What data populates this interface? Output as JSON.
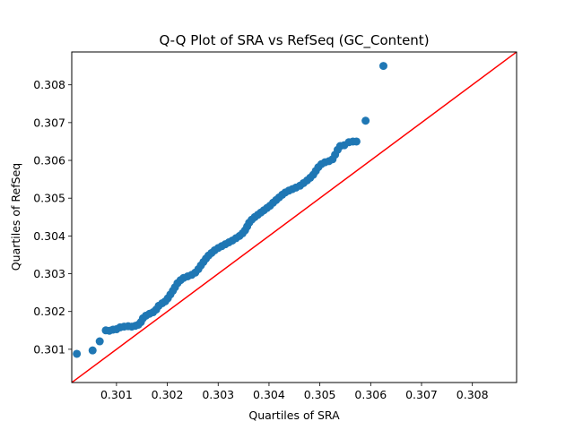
{
  "chart_data": {
    "type": "scatter",
    "title": "Q-Q Plot of SRA vs RefSeq (GC_Content)",
    "xlabel": "Quartiles of SRA",
    "ylabel": "Quartiles of RefSeq",
    "xlim": [
      0.30012,
      0.30887
    ],
    "ylim": [
      0.30012,
      0.30887
    ],
    "xticks": [
      0.301,
      0.302,
      0.303,
      0.304,
      0.305,
      0.306,
      0.307,
      0.308
    ],
    "yticks": [
      0.301,
      0.302,
      0.303,
      0.304,
      0.305,
      0.306,
      0.307,
      0.308
    ],
    "xtick_labels": [
      "0.301",
      "0.302",
      "0.303",
      "0.304",
      "0.305",
      "0.306",
      "0.307",
      "0.308"
    ],
    "ytick_labels": [
      "0.301",
      "0.302",
      "0.303",
      "0.304",
      "0.305",
      "0.306",
      "0.307",
      "0.308"
    ],
    "grid": false,
    "marker_color": "#1f77b4",
    "reference_line_color": "#ff0000",
    "reference_line": "y = x",
    "points": [
      [
        0.30022,
        0.30088
      ],
      [
        0.30053,
        0.30097
      ],
      [
        0.30067,
        0.30121
      ],
      [
        0.30079,
        0.3015
      ],
      [
        0.30086,
        0.30149
      ],
      [
        0.30093,
        0.30152
      ],
      [
        0.301,
        0.30153
      ],
      [
        0.30107,
        0.30158
      ],
      [
        0.30115,
        0.3016
      ],
      [
        0.30123,
        0.30161
      ],
      [
        0.3013,
        0.3016
      ],
      [
        0.30137,
        0.30162
      ],
      [
        0.30143,
        0.30165
      ],
      [
        0.30148,
        0.30172
      ],
      [
        0.30152,
        0.30182
      ],
      [
        0.30158,
        0.30189
      ],
      [
        0.30165,
        0.30194
      ],
      [
        0.30172,
        0.30198
      ],
      [
        0.30178,
        0.30205
      ],
      [
        0.30183,
        0.30215
      ],
      [
        0.3019,
        0.30222
      ],
      [
        0.30196,
        0.30227
      ],
      [
        0.30201,
        0.30235
      ],
      [
        0.30206,
        0.30245
      ],
      [
        0.30211,
        0.30255
      ],
      [
        0.30215,
        0.30264
      ],
      [
        0.3022,
        0.30275
      ],
      [
        0.30226,
        0.30283
      ],
      [
        0.30232,
        0.30289
      ],
      [
        0.3024,
        0.30293
      ],
      [
        0.30248,
        0.30297
      ],
      [
        0.30255,
        0.30303
      ],
      [
        0.30261,
        0.30312
      ],
      [
        0.30266,
        0.30322
      ],
      [
        0.30271,
        0.30331
      ],
      [
        0.30276,
        0.3034
      ],
      [
        0.30281,
        0.30348
      ],
      [
        0.30287,
        0.30355
      ],
      [
        0.30293,
        0.30362
      ],
      [
        0.303,
        0.30368
      ],
      [
        0.30307,
        0.30373
      ],
      [
        0.30314,
        0.30378
      ],
      [
        0.30321,
        0.30383
      ],
      [
        0.30328,
        0.30388
      ],
      [
        0.30335,
        0.30394
      ],
      [
        0.30342,
        0.304
      ],
      [
        0.30348,
        0.30407
      ],
      [
        0.30353,
        0.30415
      ],
      [
        0.30357,
        0.30425
      ],
      [
        0.30361,
        0.30435
      ],
      [
        0.30366,
        0.30443
      ],
      [
        0.30372,
        0.3045
      ],
      [
        0.30378,
        0.30456
      ],
      [
        0.30384,
        0.30462
      ],
      [
        0.3039,
        0.30468
      ],
      [
        0.30396,
        0.30474
      ],
      [
        0.30402,
        0.3048
      ],
      [
        0.30408,
        0.30488
      ],
      [
        0.30414,
        0.30495
      ],
      [
        0.3042,
        0.30502
      ],
      [
        0.30426,
        0.30509
      ],
      [
        0.30432,
        0.30515
      ],
      [
        0.30439,
        0.3052
      ],
      [
        0.30446,
        0.30524
      ],
      [
        0.30453,
        0.30528
      ],
      [
        0.30461,
        0.30533
      ],
      [
        0.30468,
        0.3054
      ],
      [
        0.30475,
        0.30547
      ],
      [
        0.30481,
        0.30554
      ],
      [
        0.30487,
        0.30562
      ],
      [
        0.30492,
        0.30572
      ],
      [
        0.30497,
        0.30582
      ],
      [
        0.30503,
        0.3059
      ],
      [
        0.3051,
        0.30595
      ],
      [
        0.30518,
        0.30598
      ],
      [
        0.30525,
        0.30603
      ],
      [
        0.3053,
        0.30615
      ],
      [
        0.30535,
        0.30628
      ],
      [
        0.3054,
        0.30638
      ],
      [
        0.30548,
        0.3064
      ],
      [
        0.30557,
        0.30648
      ],
      [
        0.30565,
        0.3065
      ],
      [
        0.30572,
        0.3065
      ],
      [
        0.3059,
        0.30705
      ],
      [
        0.30625,
        0.3085
      ]
    ]
  }
}
